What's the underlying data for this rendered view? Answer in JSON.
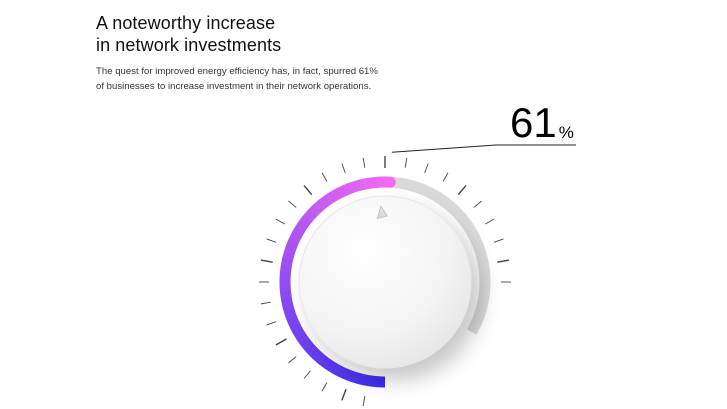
{
  "header": {
    "title_line1": "A noteworthy increase",
    "title_line2": "in network investments",
    "description_line1": "The quest for improved energy efficiency has, in fact, spurred 61%",
    "description_line2": "of businesses to increase investment in their network operations."
  },
  "gauge": {
    "value": 61,
    "value_text": "61",
    "unit": "%",
    "colors": {
      "start": "#3b2ff0",
      "end": "#f06af2",
      "track": "#d9d9d9",
      "knob": "#f6f6f6"
    },
    "knob_icon": "pointer-triangle-icon"
  }
}
